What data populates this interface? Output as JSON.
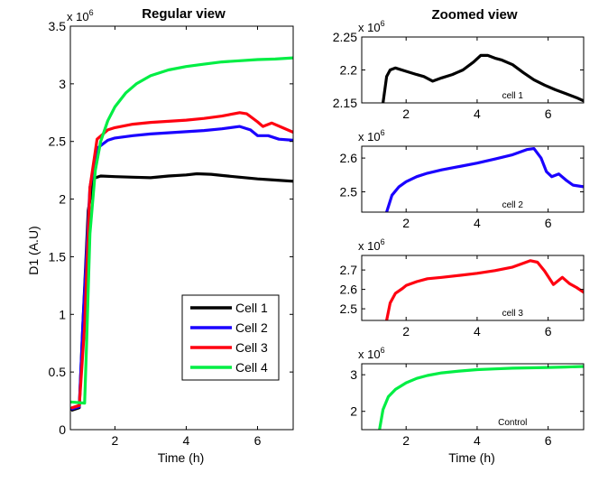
{
  "chart_data": [
    {
      "id": "regular",
      "type": "line",
      "title": "Regular view",
      "xlabel": "Time (h)",
      "ylabel": "D1 (A.U)",
      "exponent_label": "x 10",
      "exponent": "6",
      "xlim": [
        0.75,
        7
      ],
      "ylim": [
        0,
        3.5
      ],
      "xticks": [
        2,
        4,
        6
      ],
      "xtick_labels": [
        "2",
        "4",
        "6"
      ],
      "yticks": [
        0,
        0.5,
        1,
        1.5,
        2,
        2.5,
        3,
        3.5
      ],
      "ytick_labels": [
        "0",
        "0.5",
        "1",
        "1.5",
        "2",
        "2.5",
        "3",
        "3.5"
      ],
      "grid": false,
      "legend": {
        "position": "lower-right",
        "entries": [
          "Cell 1",
          "Cell 2",
          "Cell 3",
          "Cell 4"
        ]
      },
      "series": [
        {
          "name": "Cell 1",
          "color": "#000000",
          "x": [
            0.8,
            1.0,
            1.1,
            1.25,
            1.4,
            1.6,
            2.0,
            2.5,
            3.0,
            3.5,
            4.0,
            4.3,
            4.7,
            5.0,
            5.5,
            6.0,
            6.5,
            7.0
          ],
          "y": [
            0.17,
            0.19,
            0.9,
            1.9,
            2.18,
            2.2,
            2.195,
            2.19,
            2.185,
            2.2,
            2.21,
            2.22,
            2.215,
            2.205,
            2.19,
            2.175,
            2.165,
            2.155
          ]
        },
        {
          "name": "Cell 2",
          "color": "#1a00ff",
          "x": [
            0.8,
            1.0,
            1.1,
            1.3,
            1.5,
            1.8,
            2.0,
            2.5,
            3.0,
            3.5,
            4.0,
            4.5,
            5.0,
            5.5,
            5.8,
            6.0,
            6.3,
            6.6,
            7.0
          ],
          "y": [
            0.18,
            0.2,
            0.9,
            2.1,
            2.44,
            2.51,
            2.53,
            2.55,
            2.565,
            2.575,
            2.585,
            2.595,
            2.61,
            2.63,
            2.6,
            2.55,
            2.55,
            2.52,
            2.51
          ]
        },
        {
          "name": "Cell 3",
          "color": "#ff0010",
          "x": [
            0.8,
            1.0,
            1.15,
            1.3,
            1.5,
            1.8,
            2.0,
            2.5,
            3.0,
            3.5,
            4.0,
            4.5,
            5.0,
            5.5,
            5.7,
            6.0,
            6.15,
            6.4,
            6.7,
            7.0
          ],
          "y": [
            0.19,
            0.21,
            0.9,
            2.1,
            2.52,
            2.6,
            2.62,
            2.65,
            2.665,
            2.675,
            2.685,
            2.7,
            2.72,
            2.75,
            2.74,
            2.67,
            2.63,
            2.66,
            2.62,
            2.58
          ]
        },
        {
          "name": "Cell 4",
          "color": "#00ee44",
          "x": [
            0.75,
            1.15,
            1.2,
            1.3,
            1.45,
            1.6,
            1.8,
            2.0,
            2.3,
            2.6,
            3.0,
            3.5,
            4.0,
            4.5,
            5.0,
            5.5,
            6.0,
            6.5,
            7.0
          ],
          "y": [
            0.24,
            0.23,
            0.7,
            1.7,
            2.25,
            2.5,
            2.68,
            2.8,
            2.92,
            3.0,
            3.07,
            3.12,
            3.15,
            3.17,
            3.19,
            3.2,
            3.21,
            3.215,
            3.225
          ]
        }
      ]
    },
    {
      "id": "zoom1",
      "type": "line",
      "title": "Zoomed view",
      "annotation": "cell 1",
      "exponent_label": "x 10",
      "exponent": "6",
      "xlim": [
        0.75,
        7
      ],
      "ylim": [
        2.15,
        2.25
      ],
      "xticks": [
        2,
        4,
        6
      ],
      "xtick_labels": [
        "2",
        "4",
        "6"
      ],
      "yticks": [
        2.15,
        2.2,
        2.25
      ],
      "ytick_labels": [
        "2.15",
        "2.2",
        "2.25"
      ],
      "series": [
        {
          "name": "cell 1",
          "color": "#000000",
          "x": [
            1.35,
            1.45,
            1.55,
            1.7,
            2.0,
            2.3,
            2.5,
            2.75,
            3.0,
            3.3,
            3.6,
            3.9,
            4.1,
            4.3,
            4.5,
            4.7,
            5.0,
            5.3,
            5.6,
            5.9,
            6.2,
            6.5,
            6.8,
            7.0
          ],
          "y": [
            2.15,
            2.19,
            2.2,
            2.203,
            2.198,
            2.193,
            2.19,
            2.183,
            2.188,
            2.193,
            2.2,
            2.212,
            2.222,
            2.222,
            2.218,
            2.215,
            2.208,
            2.196,
            2.185,
            2.177,
            2.17,
            2.164,
            2.158,
            2.153
          ]
        }
      ]
    },
    {
      "id": "zoom2",
      "type": "line",
      "annotation": "cell 2",
      "exponent_label": "x 10",
      "exponent": "6",
      "xlim": [
        0.75,
        7
      ],
      "ylim": [
        2.44,
        2.635
      ],
      "xticks": [
        2,
        4,
        6
      ],
      "xtick_labels": [
        "2",
        "4",
        "6"
      ],
      "yticks": [
        2.5,
        2.6
      ],
      "ytick_labels": [
        "2.5",
        "2.6"
      ],
      "series": [
        {
          "name": "cell 2",
          "color": "#1a00ff",
          "x": [
            1.45,
            1.6,
            1.8,
            2.0,
            2.3,
            2.6,
            3.0,
            3.5,
            4.0,
            4.5,
            5.0,
            5.4,
            5.6,
            5.8,
            5.95,
            6.1,
            6.3,
            6.5,
            6.7,
            7.0
          ],
          "y": [
            2.44,
            2.49,
            2.515,
            2.53,
            2.545,
            2.555,
            2.565,
            2.575,
            2.585,
            2.597,
            2.61,
            2.625,
            2.628,
            2.6,
            2.56,
            2.545,
            2.553,
            2.535,
            2.52,
            2.515
          ]
        }
      ]
    },
    {
      "id": "zoom3",
      "type": "line",
      "annotation": "cell 3",
      "exponent_label": "x 10",
      "exponent": "6",
      "xlim": [
        0.75,
        7
      ],
      "ylim": [
        2.44,
        2.775
      ],
      "xticks": [
        2,
        4,
        6
      ],
      "xtick_labels": [
        "2",
        "4",
        "6"
      ],
      "yticks": [
        2.5,
        2.6,
        2.7
      ],
      "ytick_labels": [
        "2.5",
        "2.6",
        "2.7"
      ],
      "series": [
        {
          "name": "cell 3",
          "color": "#ff0010",
          "x": [
            1.45,
            1.55,
            1.7,
            1.9,
            2.0,
            2.3,
            2.6,
            3.0,
            3.5,
            4.0,
            4.5,
            5.0,
            5.3,
            5.5,
            5.7,
            5.9,
            6.15,
            6.4,
            6.6,
            6.8,
            7.0
          ],
          "y": [
            2.44,
            2.53,
            2.58,
            2.605,
            2.62,
            2.64,
            2.655,
            2.662,
            2.672,
            2.683,
            2.697,
            2.715,
            2.735,
            2.748,
            2.74,
            2.695,
            2.625,
            2.662,
            2.63,
            2.61,
            2.585
          ]
        }
      ]
    },
    {
      "id": "zoom4",
      "type": "line",
      "annotation": "Control",
      "exponent_label": "x 10",
      "exponent": "6",
      "xlabel": "Time (h)",
      "xlim": [
        0.75,
        7
      ],
      "ylim": [
        1.5,
        3.3
      ],
      "xticks": [
        2,
        4,
        6
      ],
      "xtick_labels": [
        "2",
        "4",
        "6"
      ],
      "yticks": [
        2,
        3
      ],
      "ytick_labels": [
        "2",
        "3"
      ],
      "series": [
        {
          "name": "Control",
          "color": "#00ee44",
          "x": [
            1.25,
            1.35,
            1.5,
            1.7,
            2.0,
            2.3,
            2.6,
            3.0,
            3.5,
            4.0,
            4.5,
            5.0,
            5.5,
            6.0,
            6.5,
            7.0
          ],
          "y": [
            1.5,
            2.05,
            2.4,
            2.6,
            2.78,
            2.9,
            2.98,
            3.05,
            3.1,
            3.14,
            3.16,
            3.18,
            3.19,
            3.2,
            3.21,
            3.225
          ]
        }
      ]
    }
  ]
}
